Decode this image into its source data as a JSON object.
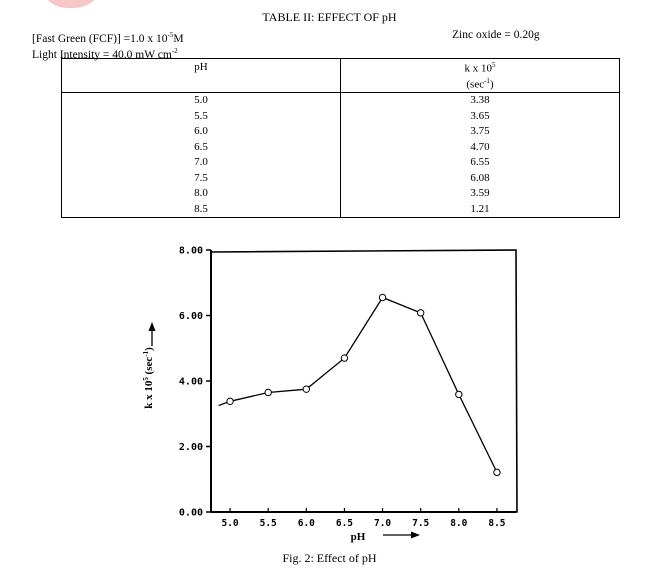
{
  "table": {
    "title": "TABLE II: EFFECT OF pH",
    "conditions": {
      "dye": "[Fast Green (FCF)] =1.0 x 10",
      "dye_exp": "-5",
      "dye_unit": "M",
      "light": "Light Intensity = 40.0 mW cm",
      "light_exp": "-2",
      "catalyst": "Zinc oxide = 0.20g"
    },
    "headers": {
      "ph": "pH",
      "k_main": "k x 10",
      "k_exp": "5",
      "k_unit": "(sec",
      "k_unit_exp": "-1",
      "k_unit_close": ")"
    },
    "rows": [
      {
        "ph": "5.0",
        "k": "3.38"
      },
      {
        "ph": "5.5",
        "k": "3.65"
      },
      {
        "ph": "6.0",
        "k": "3.75"
      },
      {
        "ph": "6.5",
        "k": "4.70"
      },
      {
        "ph": "7.0",
        "k": "6.55"
      },
      {
        "ph": "7.5",
        "k": "6.08"
      },
      {
        "ph": "8.0",
        "k": "3.59"
      },
      {
        "ph": "8.5",
        "k": "1.21"
      }
    ]
  },
  "chart_data": {
    "type": "line",
    "title": "",
    "xlabel": "pH",
    "ylabel_main": "k x 10",
    "ylabel_exp": "5",
    "ylabel_unit": " (sec",
    "ylabel_unit_exp": "-1",
    "ylabel_close": ")",
    "x": [
      5.0,
      5.5,
      6.0,
      6.5,
      7.0,
      7.5,
      8.0,
      8.5
    ],
    "y": [
      3.38,
      3.65,
      3.75,
      4.7,
      6.55,
      6.08,
      3.59,
      1.21
    ],
    "line_start": {
      "x": 4.85,
      "y": 3.25
    },
    "xlim": [
      4.75,
      8.75
    ],
    "ylim": [
      0,
      8
    ],
    "x_ticks": [
      "5.0",
      "5.5",
      "6.0",
      "6.5",
      "7.0",
      "7.5",
      "8.0",
      "8.5"
    ],
    "y_ticks": [
      "0.00",
      "2.00",
      "4.00",
      "6.00",
      "8.00"
    ],
    "grid": false,
    "caption": "Fig. 2: Effect of pH"
  }
}
